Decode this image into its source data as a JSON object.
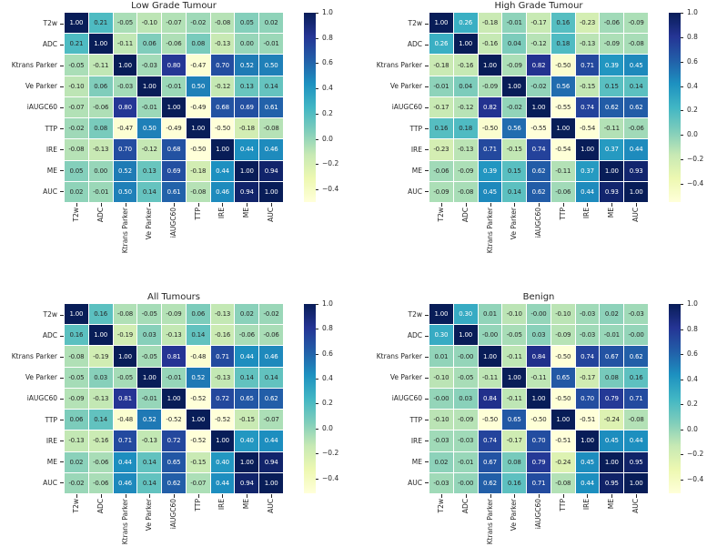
{
  "figure": {
    "background": "#ffffff",
    "text_color": "#262626",
    "colormap": {
      "name": "YlGnBu",
      "stops": [
        "#ffffd9",
        "#edf8b1",
        "#c7e9b4",
        "#7fcdbb",
        "#41b6c4",
        "#1d91c0",
        "#225ea8",
        "#253494",
        "#081d58"
      ]
    },
    "annotation_colors": {
      "on_dark": "#ffffff",
      "on_light": "#262626"
    }
  },
  "chart_data": [
    {
      "type": "heatmap",
      "title": "Low Grade Tumour",
      "categories": [
        "T2w",
        "ADC",
        "Ktrans Parker",
        "Ve Parker",
        "iAUGC60",
        "TTP",
        "IRE",
        "ME",
        "AUC"
      ],
      "values": [
        [
          "1.00",
          "0.21",
          "-0.05",
          "-0.10",
          "-0.07",
          "-0.02",
          "-0.08",
          "0.05",
          "0.02"
        ],
        [
          "0.21",
          "1.00",
          "-0.11",
          "0.06",
          "-0.06",
          "0.08",
          "-0.13",
          "0.00",
          "-0.01"
        ],
        [
          "-0.05",
          "-0.11",
          "1.00",
          "-0.03",
          "0.80",
          "-0.47",
          "0.70",
          "0.52",
          "0.50"
        ],
        [
          "-0.10",
          "0.06",
          "-0.03",
          "1.00",
          "-0.01",
          "0.50",
          "-0.12",
          "0.13",
          "0.14"
        ],
        [
          "-0.07",
          "-0.06",
          "0.80",
          "-0.01",
          "1.00",
          "-0.49",
          "0.68",
          "0.69",
          "0.61"
        ],
        [
          "-0.02",
          "0.08",
          "-0.47",
          "0.50",
          "-0.49",
          "1.00",
          "-0.50",
          "-0.18",
          "-0.08"
        ],
        [
          "-0.08",
          "-0.13",
          "0.70",
          "-0.12",
          "0.68",
          "-0.50",
          "1.00",
          "0.44",
          "0.46"
        ],
        [
          "0.05",
          "0.00",
          "0.52",
          "0.13",
          "0.69",
          "-0.18",
          "0.44",
          "1.00",
          "0.94"
        ],
        [
          "0.02",
          "-0.01",
          "0.50",
          "0.14",
          "0.61",
          "-0.08",
          "0.46",
          "0.94",
          "1.00"
        ]
      ],
      "colorbar_ticks": [
        "1.0",
        "0.8",
        "0.6",
        "0.4",
        "0.2",
        "0.0",
        "−0.2",
        "−0.4"
      ],
      "colorbar_position": "right"
    },
    {
      "type": "heatmap",
      "title": "High Grade Tumour",
      "categories": [
        "T2w",
        "ADC",
        "Ktrans Parker",
        "Ve Parker",
        "iAUGC60",
        "TTP",
        "IRE",
        "ME",
        "AUC"
      ],
      "values": [
        [
          "1.00",
          "0.26",
          "-0.18",
          "-0.01",
          "-0.17",
          "0.16",
          "-0.23",
          "-0.06",
          "-0.09"
        ],
        [
          "0.26",
          "1.00",
          "-0.16",
          "0.04",
          "-0.12",
          "0.18",
          "-0.13",
          "-0.09",
          "-0.08"
        ],
        [
          "-0.18",
          "-0.16",
          "1.00",
          "-0.09",
          "0.82",
          "-0.50",
          "0.71",
          "0.39",
          "0.45"
        ],
        [
          "-0.01",
          "0.04",
          "-0.09",
          "1.00",
          "-0.02",
          "0.56",
          "-0.15",
          "0.15",
          "0.14"
        ],
        [
          "-0.17",
          "-0.12",
          "0.82",
          "-0.02",
          "1.00",
          "-0.55",
          "0.74",
          "0.62",
          "0.62"
        ],
        [
          "0.16",
          "0.18",
          "-0.50",
          "0.56",
          "-0.55",
          "1.00",
          "-0.54",
          "-0.11",
          "-0.06"
        ],
        [
          "-0.23",
          "-0.13",
          "0.71",
          "-0.15",
          "0.74",
          "-0.54",
          "1.00",
          "0.37",
          "0.44"
        ],
        [
          "-0.06",
          "-0.09",
          "0.39",
          "0.15",
          "0.62",
          "-0.11",
          "0.37",
          "1.00",
          "0.93"
        ],
        [
          "-0.09",
          "-0.08",
          "0.45",
          "0.14",
          "0.62",
          "-0.06",
          "0.44",
          "0.93",
          "1.00"
        ]
      ],
      "colorbar_ticks": [
        "1.0",
        "0.8",
        "0.6",
        "0.4",
        "0.2",
        "0.0",
        "−0.2",
        "−0.4"
      ],
      "colorbar_position": "right"
    },
    {
      "type": "heatmap",
      "title": "All Tumours",
      "categories": [
        "T2w",
        "ADC",
        "Ktrans Parker",
        "Ve Parker",
        "iAUGC60",
        "TTP",
        "IRE",
        "ME",
        "AUC"
      ],
      "values": [
        [
          "1.00",
          "0.16",
          "-0.08",
          "-0.05",
          "-0.09",
          "0.06",
          "-0.13",
          "0.02",
          "-0.02"
        ],
        [
          "0.16",
          "1.00",
          "-0.19",
          "0.03",
          "-0.13",
          "0.14",
          "-0.16",
          "-0.06",
          "-0.06"
        ],
        [
          "-0.08",
          "-0.19",
          "1.00",
          "-0.05",
          "0.81",
          "-0.48",
          "0.71",
          "0.44",
          "0.46"
        ],
        [
          "-0.05",
          "0.03",
          "-0.05",
          "1.00",
          "-0.01",
          "0.52",
          "-0.13",
          "0.14",
          "0.14"
        ],
        [
          "-0.09",
          "-0.13",
          "0.81",
          "-0.01",
          "1.00",
          "-0.52",
          "0.72",
          "0.65",
          "0.62"
        ],
        [
          "0.06",
          "0.14",
          "-0.48",
          "0.52",
          "-0.52",
          "1.00",
          "-0.52",
          "-0.15",
          "-0.07"
        ],
        [
          "-0.13",
          "-0.16",
          "0.71",
          "-0.13",
          "0.72",
          "-0.52",
          "1.00",
          "0.40",
          "0.44"
        ],
        [
          "0.02",
          "-0.06",
          "0.44",
          "0.14",
          "0.65",
          "-0.15",
          "0.40",
          "1.00",
          "0.94"
        ],
        [
          "-0.02",
          "-0.06",
          "0.46",
          "0.14",
          "0.62",
          "-0.07",
          "0.44",
          "0.94",
          "1.00"
        ]
      ],
      "colorbar_ticks": [
        "1.0",
        "0.8",
        "0.6",
        "0.4",
        "0.2",
        "0.0",
        "−0.2",
        "−0.4"
      ],
      "colorbar_position": "right"
    },
    {
      "type": "heatmap",
      "title": "Benign",
      "categories": [
        "T2w",
        "ADC",
        "Ktrans Parker",
        "Ve Parker",
        "iAUGC60",
        "TTP",
        "IRE",
        "ME",
        "AUC"
      ],
      "values": [
        [
          "1.00",
          "0.30",
          "0.01",
          "-0.10",
          "-0.00",
          "-0.10",
          "-0.03",
          "0.02",
          "-0.03"
        ],
        [
          "0.30",
          "1.00",
          "-0.00",
          "-0.05",
          "0.03",
          "-0.09",
          "-0.03",
          "-0.01",
          "-0.00"
        ],
        [
          "0.01",
          "-0.00",
          "1.00",
          "-0.11",
          "0.84",
          "-0.50",
          "0.74",
          "0.67",
          "0.62"
        ],
        [
          "-0.10",
          "-0.05",
          "-0.11",
          "1.00",
          "-0.11",
          "0.65",
          "-0.17",
          "0.08",
          "0.16"
        ],
        [
          "-0.00",
          "0.03",
          "0.84",
          "-0.11",
          "1.00",
          "-0.50",
          "0.70",
          "0.79",
          "0.71"
        ],
        [
          "-0.10",
          "-0.09",
          "-0.50",
          "0.65",
          "-0.50",
          "1.00",
          "-0.51",
          "-0.24",
          "-0.08"
        ],
        [
          "-0.03",
          "-0.03",
          "0.74",
          "-0.17",
          "0.70",
          "-0.51",
          "1.00",
          "0.45",
          "0.44"
        ],
        [
          "0.02",
          "-0.01",
          "0.67",
          "0.08",
          "0.79",
          "-0.24",
          "0.45",
          "1.00",
          "0.95"
        ],
        [
          "-0.03",
          "-0.00",
          "0.62",
          "0.16",
          "0.71",
          "-0.08",
          "0.44",
          "0.95",
          "1.00"
        ]
      ],
      "colorbar_ticks": [
        "1.0",
        "0.8",
        "0.6",
        "0.4",
        "0.2",
        "0.0",
        "−0.2",
        "−0.4"
      ],
      "colorbar_position": "right"
    }
  ]
}
